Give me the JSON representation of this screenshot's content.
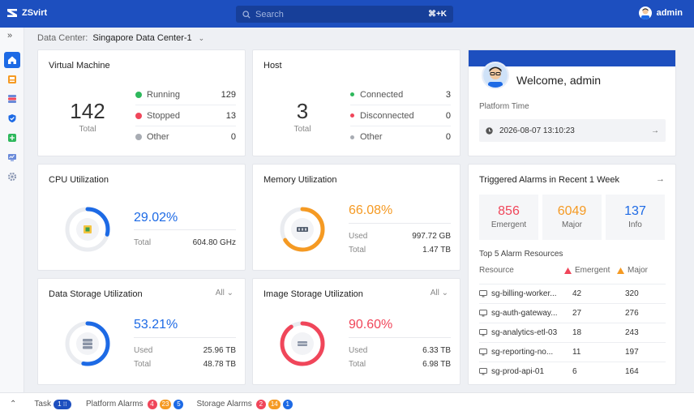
{
  "app": {
    "name": "ZSvirt"
  },
  "search": {
    "placeholder": "Search",
    "shortcut": "⌘+K"
  },
  "user": {
    "name": "admin"
  },
  "sidebar": {
    "expand_icon": "double-chevron-right-icon",
    "items": [
      {
        "icon": "home-icon",
        "active": true
      },
      {
        "icon": "vm-icon",
        "active": false
      },
      {
        "icon": "storage-icon",
        "active": false
      },
      {
        "icon": "security-icon",
        "active": false
      },
      {
        "icon": "network-icon",
        "active": false
      },
      {
        "icon": "monitor-icon",
        "active": false
      },
      {
        "icon": "settings-icon",
        "active": false
      }
    ]
  },
  "datacenter": {
    "label": "Data Center:",
    "value": "Singapore Data Center-1"
  },
  "vm": {
    "title": "Virtual Machine",
    "total": "142",
    "total_label": "Total",
    "rows": [
      {
        "label": "Running",
        "value": "129",
        "color": "#2eb85c"
      },
      {
        "label": "Stopped",
        "value": "13",
        "color": "#f0465a"
      },
      {
        "label": "Other",
        "value": "0",
        "color": "#a8acb3"
      }
    ]
  },
  "host": {
    "title": "Host",
    "total": "3",
    "total_label": "Total",
    "rows": [
      {
        "label": "Connected",
        "value": "3",
        "color": "#2eb85c"
      },
      {
        "label": "Disconnected",
        "value": "0",
        "color": "#f0465a"
      },
      {
        "label": "Other",
        "value": "0",
        "color": "#a8acb3"
      }
    ]
  },
  "welcome": {
    "title": "Welcome, admin",
    "platform_time_label": "Platform Time",
    "platform_time": "2026-08-07 13:10:23"
  },
  "cpu": {
    "title": "CPU Utilization",
    "percent": "29.02%",
    "fraction": 0.2902,
    "color": "#1d6ae5",
    "stats": [
      {
        "label": "Total",
        "value": "604.80 GHz"
      }
    ]
  },
  "memory": {
    "title": "Memory Utilization",
    "percent": "66.08%",
    "fraction": 0.6608,
    "color": "#f59a23",
    "stats": [
      {
        "label": "Used",
        "value": "997.72 GB"
      },
      {
        "label": "Total",
        "value": "1.47 TB"
      }
    ]
  },
  "data_storage": {
    "title": "Data Storage Utilization",
    "filter": "All",
    "percent": "53.21%",
    "fraction": 0.5321,
    "color": "#1d6ae5",
    "stats": [
      {
        "label": "Used",
        "value": "25.96 TB"
      },
      {
        "label": "Total",
        "value": "48.78 TB"
      }
    ]
  },
  "image_storage": {
    "title": "Image Storage Utilization",
    "filter": "All",
    "percent": "90.60%",
    "fraction": 0.906,
    "color": "#f0465a",
    "stats": [
      {
        "label": "Used",
        "value": "6.33 TB"
      },
      {
        "label": "Total",
        "value": "6.98 TB"
      }
    ]
  },
  "alarms": {
    "title": "Triggered Alarms in Recent 1 Week",
    "boxes": [
      {
        "count": "856",
        "label": "Emergent",
        "color": "#f0465a"
      },
      {
        "count": "6049",
        "label": "Major",
        "color": "#f59a23"
      },
      {
        "count": "137",
        "label": "Info",
        "color": "#1d6ae5"
      }
    ],
    "top_title": "Top 5 Alarm Resources",
    "columns": {
      "resource": "Resource",
      "emergent": "Emergent",
      "major": "Major"
    },
    "resources": [
      {
        "name": "sg-billing-worker...",
        "emergent": "42",
        "major": "320"
      },
      {
        "name": "sg-auth-gateway...",
        "emergent": "27",
        "major": "276"
      },
      {
        "name": "sg-analytics-etl-03",
        "emergent": "18",
        "major": "243"
      },
      {
        "name": "sg-reporting-no...",
        "emergent": "11",
        "major": "197"
      },
      {
        "name": "sg-prod-api-01",
        "emergent": "6",
        "major": "164"
      }
    ]
  },
  "bottombar": {
    "task_label": "Task",
    "task_count": "1",
    "platform_alarms_label": "Platform Alarms",
    "platform_alarms": [
      "4",
      "23",
      "5"
    ],
    "storage_alarms_label": "Storage Alarms",
    "storage_alarms": [
      "2",
      "14",
      "1"
    ],
    "badge_colors": [
      "#f0465a",
      "#f59a23",
      "#1d6ae5"
    ]
  }
}
